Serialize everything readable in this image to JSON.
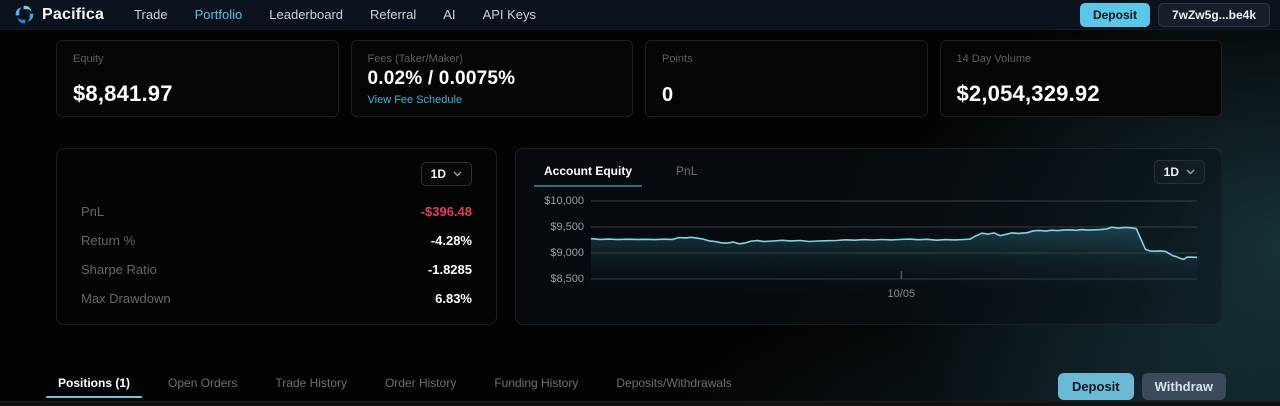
{
  "nav": {
    "brand": "Pacifica",
    "items": [
      {
        "label": "Trade",
        "active": false
      },
      {
        "label": "Portfolio",
        "active": true
      },
      {
        "label": "Leaderboard",
        "active": false
      },
      {
        "label": "Referral",
        "active": false
      },
      {
        "label": "AI",
        "active": false
      },
      {
        "label": "API Keys",
        "active": false
      }
    ],
    "deposit_label": "Deposit",
    "wallet_address": "7wZw5g...be4k"
  },
  "stats": [
    {
      "label": "Equity",
      "value": "$8,841.97"
    },
    {
      "label": "Fees (Taker/Maker)",
      "value": "0.02% / 0.0075%",
      "link": "View Fee Schedule"
    },
    {
      "label": "Points",
      "value": "0"
    },
    {
      "label": "14 Day Volume",
      "value": "$2,054,329.92"
    }
  ],
  "metrics": {
    "period": "1D",
    "rows": [
      {
        "label": "PnL",
        "value": "-$396.48",
        "negative": true
      },
      {
        "label": "Return %",
        "value": "-4.28%",
        "negative": false
      },
      {
        "label": "Sharpe Ratio",
        "value": "-1.8285",
        "negative": false
      },
      {
        "label": "Max Drawdown",
        "value": "6.83%",
        "negative": false
      }
    ]
  },
  "chart": {
    "tabs": [
      {
        "label": "Account Equity",
        "active": true
      },
      {
        "label": "PnL",
        "active": false
      }
    ],
    "period": "1D",
    "chart_data": {
      "type": "area",
      "title": "Account Equity",
      "ytick_labels": [
        "$10,000",
        "$9,500",
        "$9,000",
        "$8,500"
      ],
      "ytick_values": [
        10000,
        9500,
        9000,
        8500
      ],
      "xtick_labels": [
        "10/05"
      ],
      "xtick_position_pct": 51.2,
      "ylim": [
        8400,
        10100
      ],
      "line_color": "#82d3e6",
      "points": [
        [
          0,
          9275
        ],
        [
          1.5,
          9262
        ],
        [
          3,
          9268
        ],
        [
          4.5,
          9258
        ],
        [
          6,
          9266
        ],
        [
          7.5,
          9260
        ],
        [
          9,
          9264
        ],
        [
          10.5,
          9258
        ],
        [
          12,
          9266
        ],
        [
          13.5,
          9262
        ],
        [
          14.5,
          9298
        ],
        [
          15.5,
          9290
        ],
        [
          16.5,
          9302
        ],
        [
          17.5,
          9286
        ],
        [
          18.5,
          9268
        ],
        [
          19.5,
          9232
        ],
        [
          20.5,
          9222
        ],
        [
          21.5,
          9196
        ],
        [
          22.5,
          9190
        ],
        [
          23.5,
          9210
        ],
        [
          24.5,
          9176
        ],
        [
          25.5,
          9194
        ],
        [
          26.5,
          9230
        ],
        [
          27.5,
          9238
        ],
        [
          28.5,
          9220
        ],
        [
          30,
          9230
        ],
        [
          31.5,
          9244
        ],
        [
          33,
          9232
        ],
        [
          34.5,
          9240
        ],
        [
          36,
          9222
        ],
        [
          37.5,
          9230
        ],
        [
          39,
          9236
        ],
        [
          40.5,
          9240
        ],
        [
          42,
          9254
        ],
        [
          43.5,
          9246
        ],
        [
          45,
          9258
        ],
        [
          46.5,
          9250
        ],
        [
          48,
          9260
        ],
        [
          49.5,
          9252
        ],
        [
          51,
          9260
        ],
        [
          52.5,
          9268
        ],
        [
          54,
          9256
        ],
        [
          55.5,
          9264
        ],
        [
          57,
          9246
        ],
        [
          58.5,
          9258
        ],
        [
          60,
          9252
        ],
        [
          61.5,
          9260
        ],
        [
          62.5,
          9266
        ],
        [
          63.5,
          9328
        ],
        [
          64.5,
          9380
        ],
        [
          65.5,
          9364
        ],
        [
          66.5,
          9386
        ],
        [
          67.5,
          9334
        ],
        [
          68.5,
          9360
        ],
        [
          69.5,
          9386
        ],
        [
          70.5,
          9376
        ],
        [
          72,
          9390
        ],
        [
          73,
          9426
        ],
        [
          74,
          9434
        ],
        [
          75,
          9422
        ],
        [
          76,
          9438
        ],
        [
          77,
          9430
        ],
        [
          78,
          9440
        ],
        [
          79,
          9446
        ],
        [
          80,
          9436
        ],
        [
          81,
          9450
        ],
        [
          82,
          9440
        ],
        [
          83,
          9446
        ],
        [
          84,
          9450
        ],
        [
          85,
          9460
        ],
        [
          86,
          9496
        ],
        [
          87,
          9476
        ],
        [
          88,
          9492
        ],
        [
          89,
          9486
        ],
        [
          90,
          9468
        ],
        [
          90.7,
          9280
        ],
        [
          91.5,
          9070
        ],
        [
          92.2,
          9040
        ],
        [
          93,
          9034
        ],
        [
          94,
          9040
        ],
        [
          94.8,
          9030
        ],
        [
          95.4,
          8988
        ],
        [
          96,
          8948
        ],
        [
          96.6,
          8928
        ],
        [
          97.2,
          8898
        ],
        [
          97.8,
          8878
        ],
        [
          98.4,
          8922
        ],
        [
          100,
          8918
        ]
      ]
    }
  },
  "bottom": {
    "tabs": [
      {
        "label": "Positions (1)",
        "active": true
      },
      {
        "label": "Open Orders",
        "active": false
      },
      {
        "label": "Trade History",
        "active": false
      },
      {
        "label": "Order History",
        "active": false
      },
      {
        "label": "Funding History",
        "active": false
      },
      {
        "label": "Deposits/Withdrawals",
        "active": false
      }
    ],
    "deposit_label": "Deposit",
    "withdraw_label": "Withdraw"
  },
  "colors": {
    "accent_cyan": "#5bc6e6",
    "negative_red": "#e0405c",
    "link_cyan": "#3fb8d8",
    "tab_underline_teal": "#2e6e80"
  }
}
